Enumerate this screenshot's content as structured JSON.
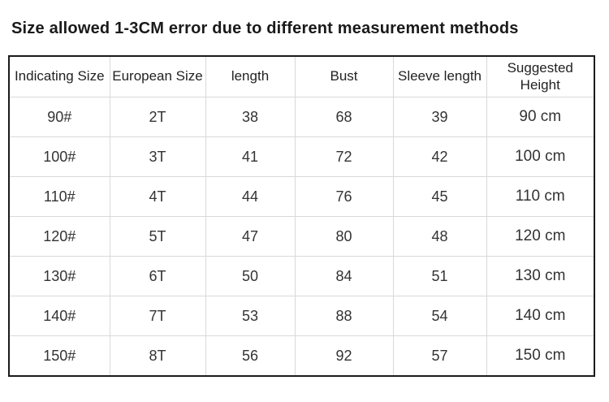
{
  "page": {
    "title": "Size allowed 1-3CM error due to different measurement methods"
  },
  "size_table": {
    "columns": [
      "Indicating Size",
      "European Size",
      "length",
      "Bust",
      "Sleeve length",
      "Suggested Height"
    ],
    "rows": [
      [
        "90#",
        "2T",
        "38",
        "68",
        "39",
        "90 cm"
      ],
      [
        "100#",
        "3T",
        "41",
        "72",
        "42",
        "100 cm"
      ],
      [
        "110#",
        "4T",
        "44",
        "76",
        "45",
        "110 cm"
      ],
      [
        "120#",
        "5T",
        "47",
        "80",
        "48",
        "120 cm"
      ],
      [
        "130#",
        "6T",
        "50",
        "84",
        "51",
        "130 cm"
      ],
      [
        "140#",
        "7T",
        "53",
        "88",
        "54",
        "140 cm"
      ],
      [
        "150#",
        "8T",
        "56",
        "92",
        "57",
        "150 cm"
      ]
    ]
  },
  "colors": {
    "background": "#ffffff",
    "title_text": "#1a1a1a",
    "cell_text": "#333333",
    "outer_border": "#1a1a1a",
    "grid_line": "#d9d9d9"
  }
}
